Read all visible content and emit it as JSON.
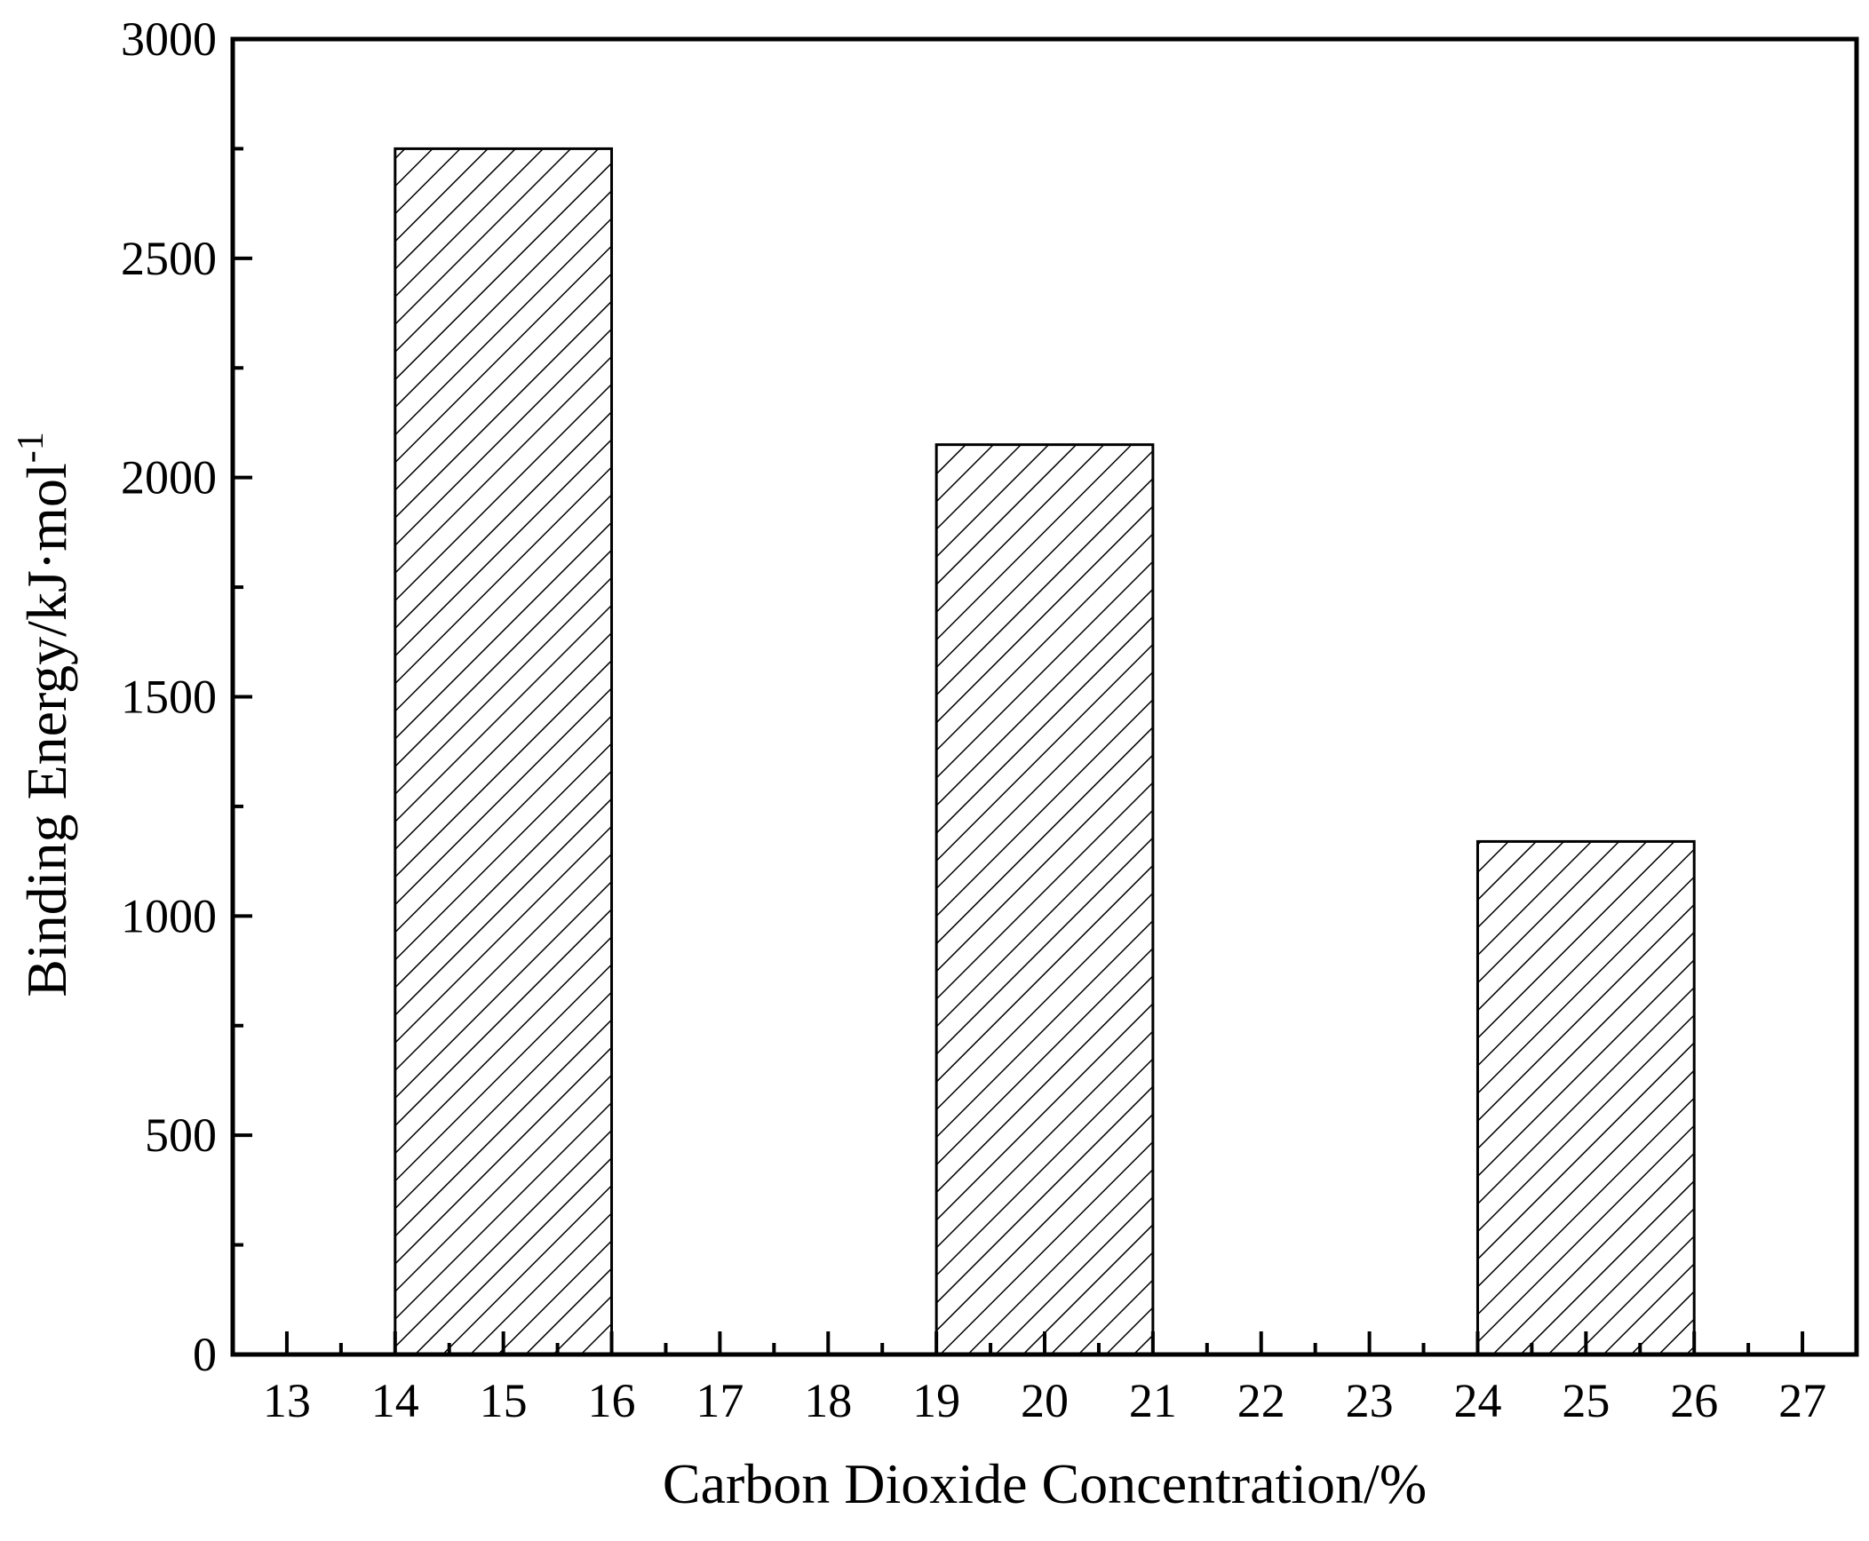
{
  "chart_data": {
    "type": "bar",
    "title": "",
    "xlabel": "Carbon Dioxide Concentration/%",
    "ylabel": "Binding Energy/kJ·mol",
    "ylabel_sup": "-1",
    "xlim": [
      12.5,
      27.5
    ],
    "ylim": [
      0,
      3000
    ],
    "x_ticks": [
      13,
      14,
      15,
      16,
      17,
      18,
      19,
      20,
      21,
      22,
      23,
      24,
      25,
      26,
      27
    ],
    "x_tick_labels": [
      "13",
      "14",
      "15",
      "16",
      "17",
      "18",
      "19",
      "20",
      "21",
      "22",
      "23",
      "24",
      "25",
      "26",
      "27"
    ],
    "y_ticks": [
      0,
      500,
      1000,
      1500,
      2000,
      2500,
      3000
    ],
    "y_tick_labels": [
      "0",
      "500",
      "1000",
      "1500",
      "2000",
      "2500",
      "3000"
    ],
    "y_minor_step": 250,
    "x_minor_step": 0.5,
    "bar_width": 2,
    "grid": false,
    "legend": "none",
    "fill_pattern": "diagonal-hatch",
    "bar_color": "#000000",
    "x": [
      15,
      20,
      25
    ],
    "values": [
      2750,
      2075,
      1170
    ]
  }
}
